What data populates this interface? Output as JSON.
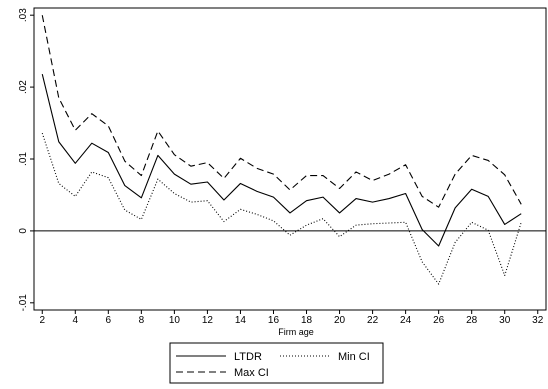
{
  "chart_data": {
    "type": "line",
    "title": "",
    "xlabel": "Firm age",
    "ylabel": "",
    "xlim": [
      1.5,
      32.5
    ],
    "ylim": [
      -0.011,
      0.031
    ],
    "x_ticks": [
      2,
      4,
      6,
      8,
      10,
      12,
      14,
      16,
      18,
      20,
      22,
      24,
      26,
      28,
      30,
      32
    ],
    "y_ticks": [
      -0.01,
      0,
      0.01,
      0.02,
      0.03
    ],
    "y_tick_labels": [
      "-.01",
      "0",
      ".01",
      ".02",
      ".03"
    ],
    "reference_line": 0,
    "grid": false,
    "legend_position": "bottom",
    "x": [
      2,
      3,
      4,
      5,
      6,
      7,
      8,
      9,
      10,
      11,
      12,
      13,
      14,
      15,
      16,
      17,
      18,
      19,
      20,
      21,
      22,
      23,
      24,
      25,
      26,
      27,
      28,
      29,
      30,
      31
    ],
    "series": [
      {
        "name": "LTDR",
        "style": "solid",
        "color": "#000000",
        "values": [
          0.0218,
          0.0124,
          0.0094,
          0.0122,
          0.0109,
          0.0063,
          0.0046,
          0.0105,
          0.0079,
          0.0065,
          0.0068,
          0.0043,
          0.0066,
          0.0055,
          0.0047,
          0.0025,
          0.0042,
          0.0047,
          0.0025,
          0.0045,
          0.004,
          0.0045,
          0.0052,
          0.0002,
          -0.0021,
          0.0032,
          0.0058,
          0.0048,
          0.0009,
          0.0024
        ]
      },
      {
        "name": "Min CI",
        "style": "dotted",
        "color": "#000000",
        "values": [
          0.0136,
          0.0066,
          0.0048,
          0.0082,
          0.0074,
          0.0029,
          0.0016,
          0.0072,
          0.0052,
          0.004,
          0.0042,
          0.0013,
          0.003,
          0.0023,
          0.0014,
          -0.0006,
          0.0008,
          0.0017,
          -0.0008,
          0.0008,
          0.001,
          0.0011,
          0.0012,
          -0.0043,
          -0.0074,
          -0.0016,
          0.0012,
          0.0001,
          -0.0062,
          0.0012
        ]
      },
      {
        "name": "Max CI",
        "style": "dashed",
        "color": "#000000",
        "values": [
          0.03,
          0.0185,
          0.014,
          0.0163,
          0.0146,
          0.0097,
          0.0077,
          0.0139,
          0.0106,
          0.009,
          0.0095,
          0.0073,
          0.0101,
          0.0087,
          0.0079,
          0.0057,
          0.0077,
          0.0077,
          0.0059,
          0.0082,
          0.007,
          0.0079,
          0.0092,
          0.0048,
          0.0033,
          0.0079,
          0.0105,
          0.0098,
          0.0078,
          0.0037
        ]
      }
    ]
  },
  "legend": {
    "items": [
      {
        "label": "LTDR",
        "style": "solid"
      },
      {
        "label": "Min CI",
        "style": "dotted"
      },
      {
        "label": "Max CI",
        "style": "dashed"
      }
    ]
  }
}
